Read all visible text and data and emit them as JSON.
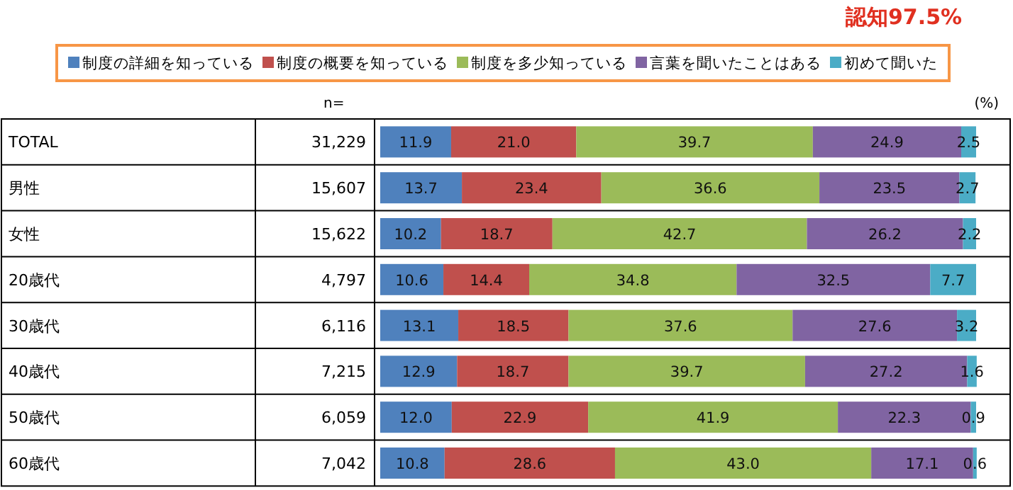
{
  "chart_data": {
    "type": "bar",
    "orientation": "horizontal",
    "stacked": true,
    "legend": "top",
    "tick_labels": "y",
    "xlim": [
      0,
      100
    ],
    "categories": [
      "TOTAL",
      "男性",
      "女性",
      "20歳代",
      "30歳代",
      "40歳代",
      "50歳代",
      "60歳代"
    ],
    "series": [
      {
        "name": "制度の詳細を知っている",
        "color": "#4f81bd",
        "values": [
          11.9,
          13.7,
          10.2,
          10.6,
          13.1,
          12.9,
          12.0,
          10.8
        ],
        "value_labels": [
          "11.9",
          "13.7",
          "10.2",
          "10.6",
          "13.1",
          "12.9",
          "12.0",
          "10.8"
        ]
      },
      {
        "name": "制度の概要を知っている",
        "color": "#c0504d",
        "values": [
          21.0,
          23.4,
          18.7,
          14.4,
          18.5,
          18.7,
          22.9,
          28.6
        ],
        "value_labels": [
          "21.0",
          "23.4",
          "18.7",
          "14.4",
          "18.5",
          "18.7",
          "22.9",
          "28.6"
        ]
      },
      {
        "name": "制度を多少知っている",
        "color": "#9bbb59",
        "values": [
          39.7,
          36.6,
          42.7,
          34.8,
          37.6,
          39.7,
          41.9,
          43.0
        ],
        "value_labels": [
          "39.7",
          "36.6",
          "42.7",
          "34.8",
          "37.6",
          "39.7",
          "41.9",
          "43.0"
        ]
      },
      {
        "name": "言葉を聞いたことはある",
        "color": "#8064a2",
        "values": [
          24.9,
          23.5,
          26.2,
          32.5,
          27.6,
          27.2,
          22.3,
          17.1
        ],
        "value_labels": [
          "24.9",
          "23.5",
          "26.2",
          "32.5",
          "27.6",
          "27.2",
          "22.3",
          "17.1"
        ]
      },
      {
        "name": "初めて聞いた",
        "color": "#4bacc6",
        "values": [
          2.5,
          2.7,
          2.2,
          7.7,
          3.2,
          1.6,
          0.9,
          0.6
        ],
        "value_labels": [
          "2.5",
          "2.7",
          "2.2",
          "7.7",
          "3.2",
          "1.6",
          "0.9",
          "0.6"
        ]
      }
    ],
    "annotations": [
      "認知97.5%",
      "(%)",
      "n=",
      "31,229",
      "15,607",
      "15,622",
      "4,797",
      "6,116",
      "7,215",
      "6,059",
      "7,042"
    ]
  }
}
